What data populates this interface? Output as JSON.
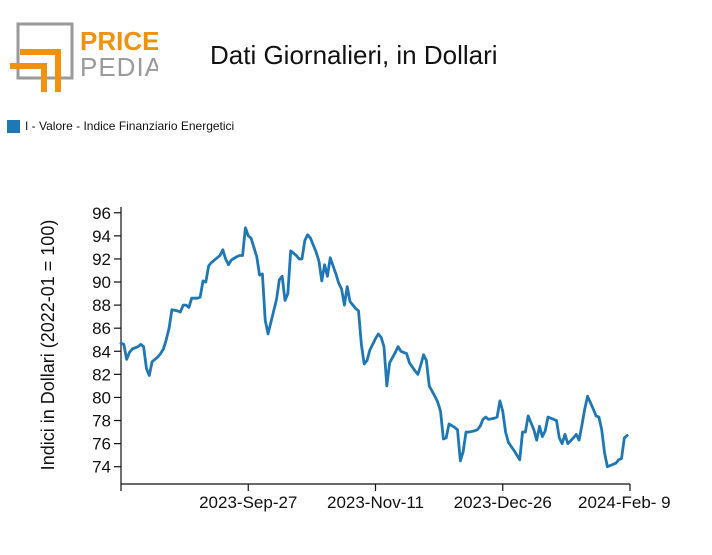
{
  "logo": {
    "word_top": "PRICE",
    "word_bottom": "PEDIA",
    "accent_color": "#f0920e",
    "gray_color": "#9a9a9a"
  },
  "chart_data": {
    "type": "line",
    "title": "Dati Giornalieri, in Dollari",
    "ylabel": "Indici in Dollari (2022-01 = 100)",
    "xlabel": "",
    "ylim": [
      72.5,
      96.5
    ],
    "yticks": [
      74,
      76,
      78,
      80,
      82,
      84,
      86,
      88,
      90,
      92,
      94,
      96
    ],
    "xlim": [
      "2023-08-13",
      "2024-02-09"
    ],
    "xticks": [
      {
        "date": "2023-08-13",
        "label": ""
      },
      {
        "date": "2023-09-27",
        "label": "2023-Sep-27"
      },
      {
        "date": "2023-11-11",
        "label": "2023-Nov-11"
      },
      {
        "date": "2023-12-26",
        "label": "2023-Dec-26"
      },
      {
        "date": "2024-02-09",
        "label": "2024-Feb- 9"
      }
    ],
    "legend_position": "top-left",
    "grid": false,
    "series": [
      {
        "name": "I - Valore - Indice Finanziario Energetici",
        "color": "#1f77b4",
        "points": [
          [
            "2023-08-13",
            84.7
          ],
          [
            "2023-08-14",
            84.6
          ],
          [
            "2023-08-15",
            83.3
          ],
          [
            "2023-08-16",
            83.9
          ],
          [
            "2023-08-17",
            84.2
          ],
          [
            "2023-08-19",
            84.4
          ],
          [
            "2023-08-20",
            84.6
          ],
          [
            "2023-08-21",
            84.4
          ],
          [
            "2023-08-22",
            82.5
          ],
          [
            "2023-08-23",
            81.9
          ],
          [
            "2023-08-24",
            83.1
          ],
          [
            "2023-08-26",
            83.5
          ],
          [
            "2023-08-27",
            83.8
          ],
          [
            "2023-08-28",
            84.2
          ],
          [
            "2023-08-29",
            85.0
          ],
          [
            "2023-08-30",
            86.0
          ],
          [
            "2023-08-31",
            87.6
          ],
          [
            "2023-09-02",
            87.5
          ],
          [
            "2023-09-03",
            87.4
          ],
          [
            "2023-09-04",
            88.0
          ],
          [
            "2023-09-05",
            88.0
          ],
          [
            "2023-09-06",
            87.8
          ],
          [
            "2023-09-07",
            88.6
          ],
          [
            "2023-09-09",
            88.6
          ],
          [
            "2023-09-10",
            88.7
          ],
          [
            "2023-09-11",
            90.1
          ],
          [
            "2023-09-12",
            90.0
          ],
          [
            "2023-09-13",
            91.4
          ],
          [
            "2023-09-14",
            91.7
          ],
          [
            "2023-09-16",
            92.1
          ],
          [
            "2023-09-17",
            92.3
          ],
          [
            "2023-09-18",
            92.8
          ],
          [
            "2023-09-19",
            92.0
          ],
          [
            "2023-09-20",
            91.5
          ],
          [
            "2023-09-21",
            91.9
          ],
          [
            "2023-09-23",
            92.2
          ],
          [
            "2023-09-24",
            92.3
          ],
          [
            "2023-09-25",
            92.3
          ],
          [
            "2023-09-26",
            94.7
          ],
          [
            "2023-09-27",
            94.0
          ],
          [
            "2023-09-28",
            93.8
          ],
          [
            "2023-09-30",
            92.2
          ],
          [
            "2023-10-01",
            90.6
          ],
          [
            "2023-10-02",
            90.7
          ],
          [
            "2023-10-03",
            86.7
          ],
          [
            "2023-10-04",
            85.5
          ],
          [
            "2023-10-05",
            86.5
          ],
          [
            "2023-10-07",
            88.5
          ],
          [
            "2023-10-08",
            90.2
          ],
          [
            "2023-10-09",
            90.5
          ],
          [
            "2023-10-10",
            88.4
          ],
          [
            "2023-10-11",
            89.0
          ],
          [
            "2023-10-12",
            92.7
          ],
          [
            "2023-10-14",
            92.3
          ],
          [
            "2023-10-15",
            92.0
          ],
          [
            "2023-10-16",
            92.0
          ],
          [
            "2023-10-17",
            93.6
          ],
          [
            "2023-10-18",
            94.1
          ],
          [
            "2023-10-19",
            93.8
          ],
          [
            "2023-10-21",
            92.6
          ],
          [
            "2023-10-22",
            91.8
          ],
          [
            "2023-10-23",
            90.1
          ],
          [
            "2023-10-24",
            91.5
          ],
          [
            "2023-10-25",
            90.5
          ],
          [
            "2023-10-26",
            92.1
          ],
          [
            "2023-10-28",
            90.7
          ],
          [
            "2023-10-29",
            89.9
          ],
          [
            "2023-10-30",
            89.4
          ],
          [
            "2023-10-31",
            88.0
          ],
          [
            "2023-11-01",
            89.6
          ],
          [
            "2023-11-02",
            88.3
          ],
          [
            "2023-11-04",
            87.7
          ],
          [
            "2023-11-05",
            87.5
          ],
          [
            "2023-11-06",
            84.6
          ],
          [
            "2023-11-07",
            82.9
          ],
          [
            "2023-11-08",
            83.2
          ],
          [
            "2023-11-09",
            84.1
          ],
          [
            "2023-11-11",
            85.1
          ],
          [
            "2023-11-12",
            85.5
          ],
          [
            "2023-11-13",
            85.2
          ],
          [
            "2023-11-14",
            84.4
          ],
          [
            "2023-11-15",
            81.0
          ],
          [
            "2023-11-16",
            83.0
          ],
          [
            "2023-11-18",
            83.9
          ],
          [
            "2023-11-19",
            84.4
          ],
          [
            "2023-11-20",
            84.0
          ],
          [
            "2023-11-21",
            83.9
          ],
          [
            "2023-11-22",
            83.8
          ],
          [
            "2023-11-23",
            83.0
          ],
          [
            "2023-11-25",
            82.3
          ],
          [
            "2023-11-26",
            82.0
          ],
          [
            "2023-11-27",
            82.8
          ],
          [
            "2023-11-28",
            83.7
          ],
          [
            "2023-11-29",
            83.2
          ],
          [
            "2023-11-30",
            81.0
          ],
          [
            "2023-12-02",
            80.1
          ],
          [
            "2023-12-03",
            79.6
          ],
          [
            "2023-12-04",
            78.8
          ],
          [
            "2023-12-05",
            76.4
          ],
          [
            "2023-12-06",
            76.5
          ],
          [
            "2023-12-07",
            77.7
          ],
          [
            "2023-12-09",
            77.4
          ],
          [
            "2023-12-10",
            77.2
          ],
          [
            "2023-12-11",
            74.5
          ],
          [
            "2023-12-12",
            75.3
          ],
          [
            "2023-12-13",
            77.0
          ],
          [
            "2023-12-14",
            77.0
          ],
          [
            "2023-12-16",
            77.1
          ],
          [
            "2023-12-17",
            77.2
          ],
          [
            "2023-12-18",
            77.5
          ],
          [
            "2023-12-19",
            78.1
          ],
          [
            "2023-12-20",
            78.3
          ],
          [
            "2023-12-21",
            78.1
          ],
          [
            "2023-12-23",
            78.2
          ],
          [
            "2023-12-24",
            78.3
          ],
          [
            "2023-12-25",
            79.7
          ],
          [
            "2023-12-26",
            78.8
          ],
          [
            "2023-12-27",
            77.0
          ],
          [
            "2023-12-28",
            76.1
          ],
          [
            "2023-12-30",
            75.4
          ],
          [
            "2023-12-31",
            75.0
          ],
          [
            "2024-01-01",
            74.6
          ],
          [
            "2024-01-02",
            77.0
          ],
          [
            "2024-01-03",
            77.0
          ],
          [
            "2024-01-04",
            78.4
          ],
          [
            "2024-01-06",
            77.2
          ],
          [
            "2024-01-07",
            76.3
          ],
          [
            "2024-01-08",
            77.5
          ],
          [
            "2024-01-09",
            76.6
          ],
          [
            "2024-01-10",
            77.1
          ],
          [
            "2024-01-11",
            78.3
          ],
          [
            "2024-01-13",
            78.1
          ],
          [
            "2024-01-14",
            78.0
          ],
          [
            "2024-01-15",
            76.5
          ],
          [
            "2024-01-16",
            76.0
          ],
          [
            "2024-01-17",
            76.8
          ],
          [
            "2024-01-18",
            76.0
          ],
          [
            "2024-01-20",
            76.5
          ],
          [
            "2024-01-21",
            76.8
          ],
          [
            "2024-01-22",
            76.3
          ],
          [
            "2024-01-23",
            77.6
          ],
          [
            "2024-01-24",
            79.0
          ],
          [
            "2024-01-25",
            80.1
          ],
          [
            "2024-01-27",
            79.0
          ],
          [
            "2024-01-28",
            78.4
          ],
          [
            "2024-01-29",
            78.3
          ],
          [
            "2024-01-30",
            77.2
          ],
          [
            "2024-01-31",
            75.2
          ],
          [
            "2024-02-01",
            74.0
          ],
          [
            "2024-02-03",
            74.2
          ],
          [
            "2024-02-04",
            74.3
          ],
          [
            "2024-02-05",
            74.6
          ],
          [
            "2024-02-06",
            74.7
          ],
          [
            "2024-02-07",
            76.5
          ],
          [
            "2024-02-08",
            76.7
          ]
        ]
      }
    ]
  }
}
